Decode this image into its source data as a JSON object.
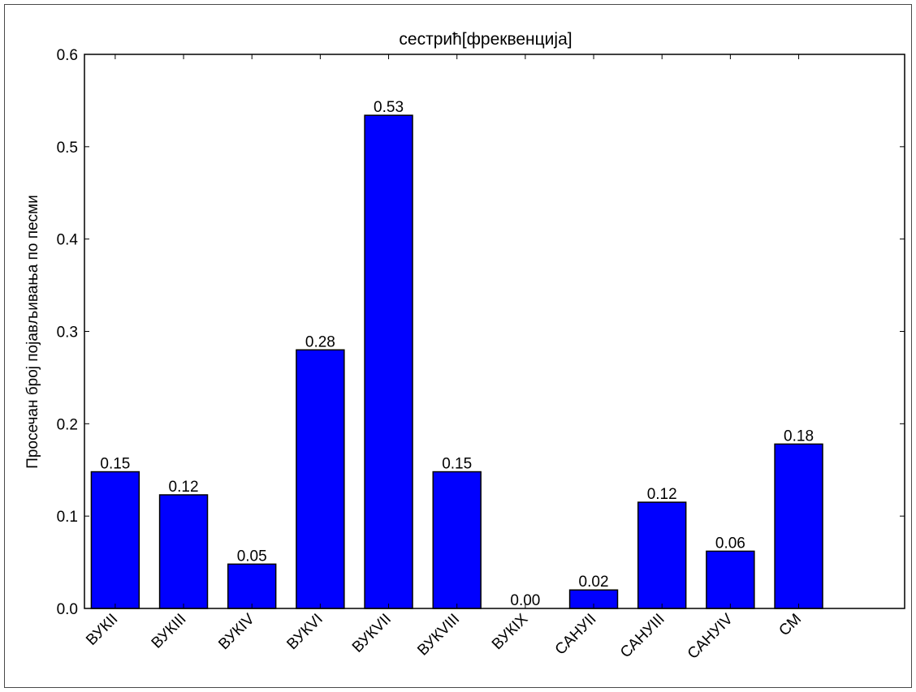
{
  "chart_data": {
    "type": "bar",
    "title": "сестрић[фреквенција]",
    "xlabel": "",
    "ylabel": "Просечан број појављивања по песми",
    "categories": [
      "ВУКII",
      "ВУКIII",
      "ВУКIV",
      "ВУКVI",
      "ВУКVII",
      "ВУКVIII",
      "ВУКIX",
      "САНУII",
      "САНУIII",
      "САНУIV",
      "СМ"
    ],
    "values": [
      0.148,
      0.123,
      0.048,
      0.28,
      0.534,
      0.148,
      0.0,
      0.02,
      0.115,
      0.062,
      0.178
    ],
    "value_labels": [
      "0.15",
      "0.12",
      "0.05",
      "0.28",
      "0.53",
      "0.15",
      "0.00",
      "0.02",
      "0.12",
      "0.06",
      "0.18"
    ],
    "yticks": [
      "0.0",
      "0.1",
      "0.2",
      "0.3",
      "0.4",
      "0.5",
      "0.6"
    ],
    "ylim": [
      0,
      0.6
    ],
    "grid": false,
    "bar_color": "#0000ff",
    "edge_color": "#000000"
  }
}
